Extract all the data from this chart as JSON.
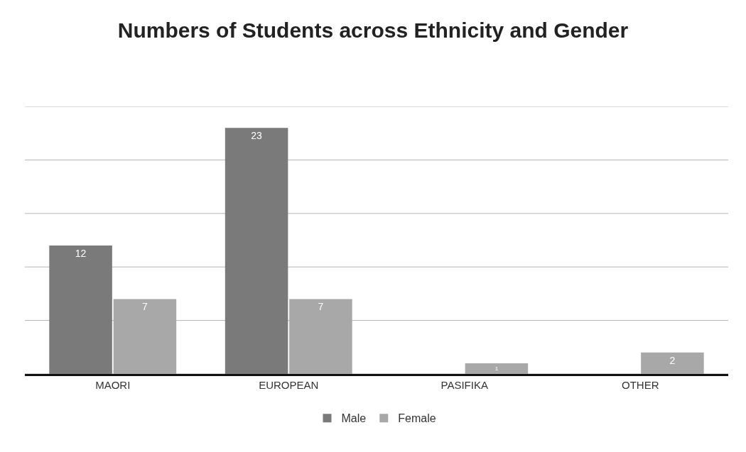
{
  "chart_data": {
    "type": "bar",
    "title": "Numbers of Students across Ethnicity and Gender",
    "categories": [
      "MAORI",
      "EUROPEAN",
      "PASIFIKA",
      "OTHER"
    ],
    "series": [
      {
        "name": "Male",
        "color": "#7a7a7a",
        "values": [
          12,
          23,
          0,
          0
        ],
        "value_labels": [
          "12",
          "23",
          null,
          null
        ]
      },
      {
        "name": "Female",
        "color": "#a8a8a8",
        "values": [
          7,
          7,
          1,
          2
        ],
        "value_labels": [
          "7",
          "7",
          "1",
          "2"
        ]
      }
    ],
    "ylim": [
      0,
      25
    ],
    "yticks": [
      {
        "value": 0,
        "label": null
      },
      {
        "value": 5,
        "label": null
      },
      {
        "value": 10,
        "label": null
      },
      {
        "value": 15,
        "label": null
      },
      {
        "value": 20,
        "label": null
      },
      {
        "value": 25,
        "label": null
      }
    ],
    "tick_labels": "x",
    "grid": "y",
    "legend": "bottom"
  }
}
